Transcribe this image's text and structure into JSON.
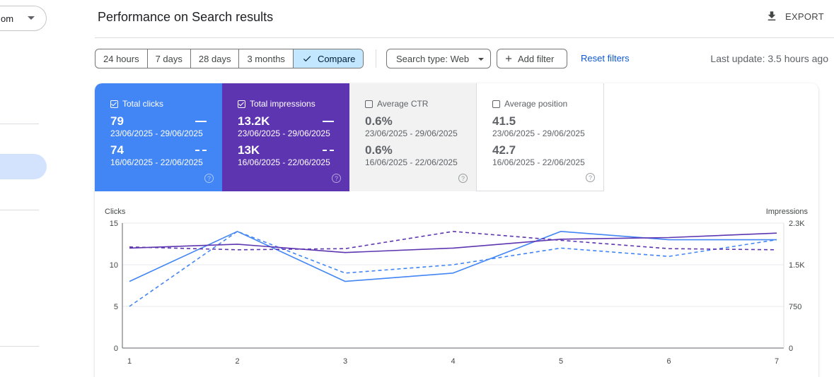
{
  "sidebar": {
    "property_label": "om"
  },
  "header": {
    "title": "Performance on Search results",
    "export_label": "EXPORT"
  },
  "filters": {
    "date_options": [
      "24 hours",
      "7 days",
      "28 days",
      "3 months",
      "Compare"
    ],
    "selected_date_option": "Compare",
    "search_type": "Search type: Web",
    "add_filter": "Add filter",
    "reset": "Reset filters",
    "last_update": "Last update: 3.5 hours ago"
  },
  "metrics": [
    {
      "label": "Total clicks",
      "checked": true,
      "value_current": "79",
      "range_current": "23/06/2025 - 29/06/2025",
      "value_previous": "74",
      "range_previous": "16/06/2025 - 22/06/2025",
      "color": "#4285f4"
    },
    {
      "label": "Total impressions",
      "checked": true,
      "value_current": "13.2K",
      "range_current": "23/06/2025 - 29/06/2025",
      "value_previous": "13K",
      "range_previous": "16/06/2025 - 22/06/2025",
      "color": "#5e35b1"
    },
    {
      "label": "Average CTR",
      "checked": false,
      "value_current": "0.6%",
      "range_current": "23/06/2025 - 29/06/2025",
      "value_previous": "0.6%",
      "range_previous": "16/06/2025 - 22/06/2025",
      "color": "#f2f2f2"
    },
    {
      "label": "Average position",
      "checked": false,
      "value_current": "41.5",
      "range_current": "23/06/2025 - 29/06/2025",
      "value_previous": "42.7",
      "range_previous": "16/06/2025 - 22/06/2025",
      "color": "#ffffff"
    }
  ],
  "chart_data": {
    "type": "line",
    "x": [
      1,
      2,
      3,
      4,
      5,
      6,
      7
    ],
    "left_axis": {
      "label": "Clicks",
      "ticks": [
        "0",
        "5",
        "10",
        "15"
      ],
      "range": [
        0,
        15
      ]
    },
    "right_axis": {
      "label": "Impressions",
      "ticks": [
        "0",
        "750",
        "1.5K",
        "2.3K"
      ],
      "range": [
        0,
        2250
      ]
    },
    "series": [
      {
        "metric": "Clicks",
        "period": "current",
        "axis": "left",
        "style": "solid",
        "color": "#4285f4",
        "values": [
          8,
          14,
          8,
          9,
          14,
          13,
          13
        ]
      },
      {
        "metric": "Clicks",
        "period": "previous",
        "axis": "left",
        "style": "dashed",
        "color": "#4285f4",
        "values": [
          5,
          14,
          9,
          10,
          12,
          11,
          13
        ]
      },
      {
        "metric": "Impressions",
        "period": "current",
        "axis": "right",
        "style": "solid",
        "color": "#5e35b1",
        "values": [
          1800,
          1870,
          1720,
          1800,
          1960,
          1990,
          2070
        ]
      },
      {
        "metric": "Impressions",
        "period": "previous",
        "axis": "right",
        "style": "dashed",
        "color": "#5e35b1",
        "values": [
          1820,
          1770,
          1790,
          2100,
          1940,
          1790,
          1770
        ]
      }
    ],
    "grid": true,
    "legend": "none"
  }
}
